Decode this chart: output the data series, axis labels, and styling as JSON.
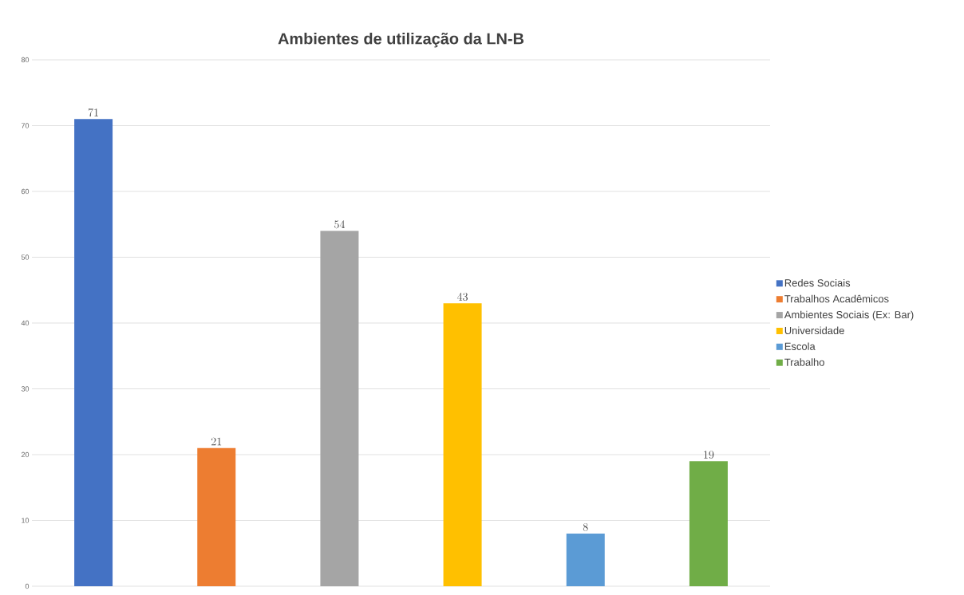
{
  "chart_data": {
    "type": "bar",
    "title": "Ambientes de utilização da LN-B",
    "categories": [
      null,
      null,
      null,
      null,
      null,
      null
    ],
    "series": [
      {
        "name": "Redes Sociais",
        "color": "#4472c4",
        "values": [
          71,
          null,
          null,
          null,
          null,
          null
        ]
      },
      {
        "name": "Trabalhos Acadêmicos",
        "color": "#ed7d31",
        "values": [
          null,
          21,
          null,
          null,
          null,
          null
        ]
      },
      {
        "name": "Ambientes Sociais (Ex: Bar)",
        "color": "#a5a5a5",
        "values": [
          null,
          null,
          54,
          null,
          null,
          null
        ]
      },
      {
        "name": "Universidade",
        "color": "#ffc000",
        "values": [
          null,
          null,
          null,
          43,
          null,
          null
        ]
      },
      {
        "name": "Escola",
        "color": "#5b9bd5",
        "values": [
          null,
          null,
          null,
          null,
          8,
          null
        ]
      },
      {
        "name": "Trabalho",
        "color": "#70ad47",
        "values": [
          null,
          null,
          null,
          null,
          null,
          19
        ]
      }
    ],
    "ylim": [
      0,
      80
    ],
    "yticks": [
      0,
      10,
      20,
      30,
      40,
      50,
      60,
      70,
      80
    ],
    "grid": "y",
    "legend": "right",
    "data_labels": true
  }
}
